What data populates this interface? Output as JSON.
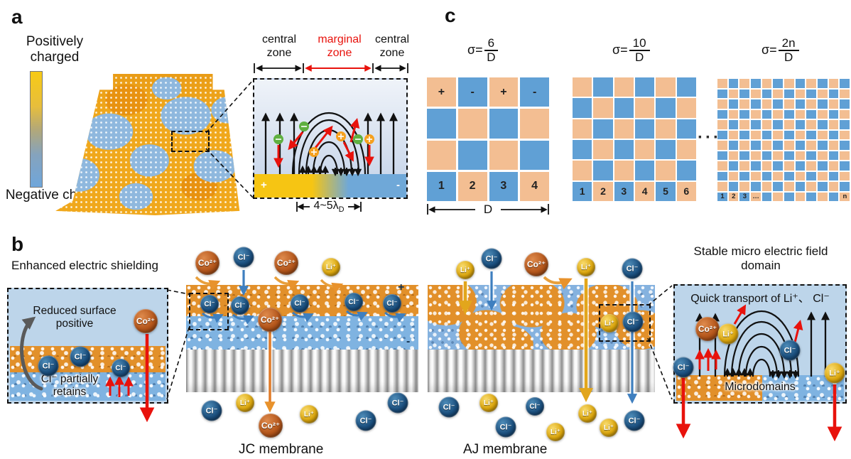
{
  "panel_a": {
    "label": "a",
    "colorbar": {
      "top": "Positively charged",
      "bottom": "Negative charge"
    },
    "inset": {
      "zone_left": "central zone",
      "zone_mid": "marginal zone",
      "zone_right": "central zone",
      "plus": "+",
      "minus": "-",
      "width_main": "4~5λ",
      "width_sub": "D"
    }
  },
  "panel_b": {
    "label": "b",
    "left_inset": {
      "title": "Enhanced electric shielding",
      "reduced": "Reduced surface positive",
      "retains": "Cl⁻ partially retains"
    },
    "jc": {
      "label": "JC membrane",
      "plus": "+",
      "minus": "-"
    },
    "aj": {
      "label": "AJ membrane"
    },
    "right_inset": {
      "title": "Stable micro electric field domain",
      "quick": "Quick transport of Li⁺、 Cl⁻",
      "microdomains": "Microdomains"
    }
  },
  "panel_c": {
    "label": "c",
    "ellipsis": "···",
    "grids": [
      {
        "sigma": "σ=",
        "numerator": "6",
        "denominator": "D",
        "size": 4,
        "top_labels": [
          "+",
          "-",
          "+",
          "-"
        ],
        "bottom_labels": [
          "1",
          "2",
          "3",
          "4"
        ],
        "d_label": "D"
      },
      {
        "sigma": "σ=",
        "numerator": "10",
        "denominator": "D",
        "size": 6,
        "top_labels": [],
        "bottom_labels": [
          "1",
          "2",
          "3",
          "4",
          "5",
          "6"
        ]
      },
      {
        "sigma": "σ=",
        "numerator": "2n",
        "denominator": "D",
        "size": 12,
        "top_labels": [],
        "bottom_labels": [
          "1",
          "2",
          "3",
          "…",
          "",
          "",
          "",
          "",
          "",
          "",
          "",
          "n"
        ]
      }
    ],
    "cell_colors": {
      "orange": "#F3BE92",
      "blue": "#60A0D5"
    }
  },
  "ions": {
    "cl": "Cl⁻",
    "li": "Li⁺",
    "co": "Co²⁺"
  },
  "colors": {
    "positive_yellow": "#F6C513",
    "negative_blue": "#6FA8D8",
    "red_arrow": "#E8120C",
    "orange_mesh": "#E2902A",
    "blue_mesh": "#7FB3E1"
  }
}
